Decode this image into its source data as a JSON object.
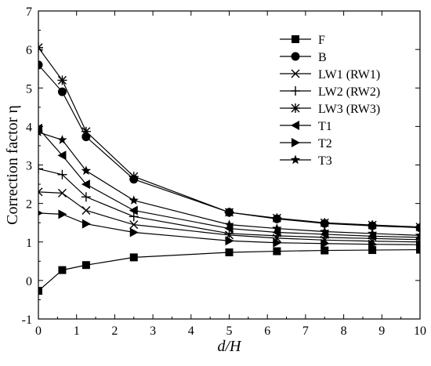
{
  "chart_data": {
    "type": "line",
    "title": "",
    "xlabel": "d/H",
    "ylabel": "Correction factor η",
    "xlim": [
      0,
      10
    ],
    "ylim": [
      -1,
      7
    ],
    "grid": false,
    "legend_position": "top-right",
    "x_ticks": [
      "0",
      "1",
      "2",
      "3",
      "4",
      "5",
      "6",
      "7",
      "8",
      "9",
      "10"
    ],
    "y_ticks": [
      "-1",
      "0",
      "1",
      "2",
      "3",
      "4",
      "5",
      "6",
      "7"
    ],
    "x": [
      0,
      0.625,
      1.25,
      2.5,
      5,
      6.25,
      7.5,
      8.75,
      10
    ],
    "series": [
      {
        "name": "F",
        "marker": "square",
        "values": [
          -0.27,
          0.27,
          0.4,
          0.6,
          0.73,
          0.76,
          0.78,
          0.79,
          0.8
        ]
      },
      {
        "name": "B",
        "marker": "circle",
        "values": [
          5.6,
          4.9,
          3.73,
          2.63,
          1.77,
          1.6,
          1.48,
          1.42,
          1.37
        ]
      },
      {
        "name": "LW1 (RW1)",
        "marker": "x",
        "values": [
          2.3,
          2.27,
          1.82,
          1.45,
          1.18,
          1.1,
          1.05,
          1.02,
          1.0
        ]
      },
      {
        "name": "LW2 (RW2)",
        "marker": "plus",
        "values": [
          2.9,
          2.75,
          2.17,
          1.66,
          1.22,
          1.16,
          1.12,
          1.09,
          1.06
        ]
      },
      {
        "name": "LW3 (RW3)",
        "marker": "asterisk",
        "values": [
          6.05,
          5.2,
          3.87,
          2.7,
          1.77,
          1.62,
          1.5,
          1.44,
          1.39
        ]
      },
      {
        "name": "T1",
        "marker": "triangle-left",
        "values": [
          3.95,
          3.25,
          2.5,
          1.82,
          1.35,
          1.25,
          1.2,
          1.15,
          1.12
        ]
      },
      {
        "name": "T2",
        "marker": "triangle-right",
        "values": [
          1.75,
          1.72,
          1.47,
          1.25,
          1.03,
          0.98,
          0.96,
          0.94,
          0.93
        ]
      },
      {
        "name": "T3",
        "marker": "star",
        "values": [
          3.85,
          3.65,
          2.85,
          2.08,
          1.45,
          1.35,
          1.27,
          1.22,
          1.17
        ]
      }
    ]
  }
}
